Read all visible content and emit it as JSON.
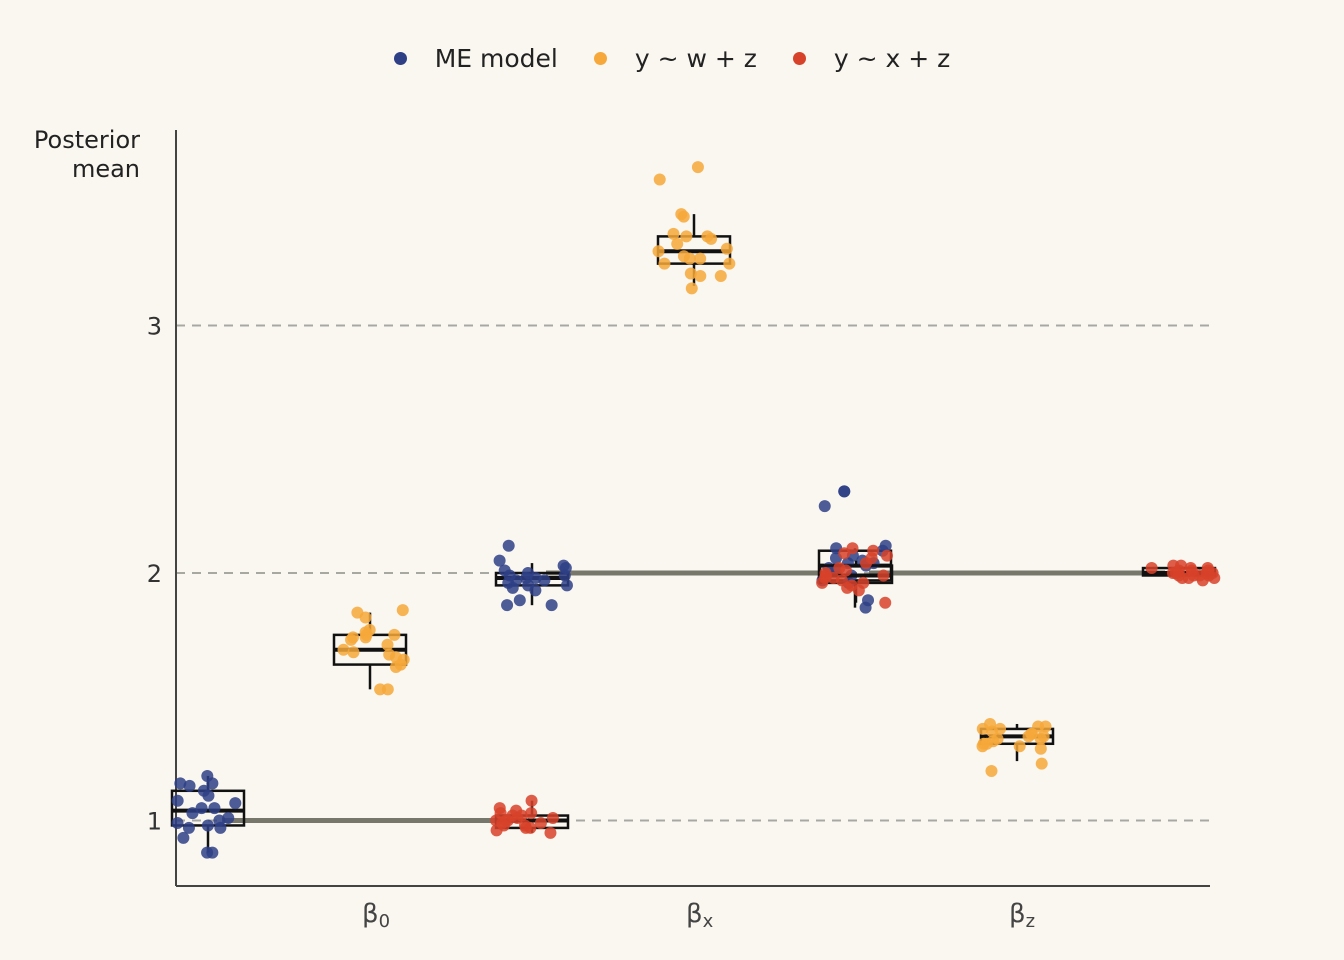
{
  "chart_data": {
    "type": "scatter",
    "subtype": "jittered points with boxplots",
    "ylabel": "Posterior\nmean",
    "xlabel": "",
    "categories": [
      "β0",
      "βx",
      "βz"
    ],
    "category_labels": [
      {
        "main": "β",
        "sub": "0"
      },
      {
        "main": "β",
        "sub": "x"
      },
      {
        "main": "β",
        "sub": "z"
      }
    ],
    "y_ticks": [
      1,
      2,
      3
    ],
    "ylim": [
      0.74,
      3.78
    ],
    "grid": "horizontal dashed at ticks",
    "legend_position": "top",
    "true_values": [
      {
        "category": "β0",
        "value": 1
      },
      {
        "category": "βx",
        "value": 2
      },
      {
        "category": "βz",
        "value": 2
      }
    ],
    "series": [
      {
        "name": "ME model",
        "color": "#2e3f86",
        "groups": [
          {
            "category": "β0",
            "offset": -0.25,
            "box": {
              "q1": 0.98,
              "median": 1.04,
              "q3": 1.12,
              "lo": 0.87,
              "hi": 1.18
            },
            "points": [
              1.18,
              1.15,
              1.15,
              1.14,
              1.12,
              1.1,
              1.08,
              1.07,
              1.05,
              1.05,
              1.03,
              1.01,
              1.0,
              0.99,
              0.98,
              0.97,
              0.97,
              0.93,
              0.87,
              0.87
            ]
          },
          {
            "category": "βx",
            "offset": -0.25,
            "box": {
              "q1": 1.95,
              "median": 1.98,
              "q3": 2.0,
              "lo": 1.87,
              "hi": 2.04
            },
            "points": [
              2.11,
              2.05,
              2.03,
              2.02,
              2.01,
              2.0,
              1.99,
              1.99,
              1.98,
              1.98,
              1.97,
              1.97,
              1.96,
              1.95,
              1.95,
              1.94,
              1.93,
              1.89,
              1.87,
              1.87
            ]
          },
          {
            "category": "βz",
            "offset": -0.25,
            "box": {
              "q1": 1.97,
              "median": 2.03,
              "q3": 2.09,
              "lo": 1.86,
              "hi": 2.1
            },
            "points": [
              2.33,
              2.33,
              2.27,
              2.11,
              2.1,
              2.09,
              2.07,
              2.06,
              2.05,
              2.04,
              2.04,
              2.03,
              2.02,
              2.01,
              1.99,
              1.98,
              1.97,
              1.96,
              1.89,
              1.86
            ]
          }
        ]
      },
      {
        "name": "y ~ w + z",
        "color": "#f6a83a",
        "groups": [
          {
            "category": "β0",
            "offset": 0,
            "box": {
              "q1": 1.63,
              "median": 1.69,
              "q3": 1.75,
              "lo": 1.53,
              "hi": 1.84
            },
            "points": [
              1.85,
              1.84,
              1.82,
              1.77,
              1.76,
              1.75,
              1.75,
              1.74,
              1.74,
              1.73,
              1.71,
              1.69,
              1.68,
              1.67,
              1.66,
              1.65,
              1.63,
              1.62,
              1.53,
              1.53
            ]
          },
          {
            "category": "βx",
            "offset": 0,
            "box": {
              "q1": 3.25,
              "median": 3.3,
              "q3": 3.36,
              "lo": 3.16,
              "hi": 3.45
            },
            "points": [
              3.64,
              3.59,
              3.45,
              3.44,
              3.37,
              3.36,
              3.36,
              3.35,
              3.33,
              3.31,
              3.3,
              3.28,
              3.27,
              3.27,
              3.25,
              3.25,
              3.21,
              3.2,
              3.2,
              3.15
            ]
          },
          {
            "category": "βz",
            "offset": 0,
            "box": {
              "q1": 1.31,
              "median": 1.34,
              "q3": 1.37,
              "lo": 1.24,
              "hi": 1.39
            },
            "points": [
              1.39,
              1.38,
              1.38,
              1.37,
              1.37,
              1.36,
              1.35,
              1.35,
              1.34,
              1.34,
              1.33,
              1.33,
              1.32,
              1.31,
              1.31,
              1.3,
              1.3,
              1.29,
              1.23,
              1.2
            ]
          }
        ]
      },
      {
        "name": "y ~ x + z",
        "color": "#d7422a",
        "groups": [
          {
            "category": "β0",
            "offset": 0.25,
            "box": {
              "q1": 0.97,
              "median": 1.0,
              "q3": 1.02,
              "lo": 0.95,
              "hi": 1.08
            },
            "points": [
              1.08,
              1.05,
              1.04,
              1.03,
              1.03,
              1.02,
              1.02,
              1.01,
              1.01,
              1.0,
              1.0,
              1.0,
              0.99,
              0.99,
              0.98,
              0.98,
              0.97,
              0.97,
              0.96,
              0.95
            ]
          },
          {
            "category": "βx",
            "offset": 0.25,
            "box": {
              "q1": 1.96,
              "median": 1.99,
              "q3": 2.03,
              "lo": 1.88,
              "hi": 2.05
            },
            "points": [
              2.1,
              2.09,
              2.08,
              2.07,
              2.06,
              2.04,
              2.02,
              2.01,
              2.0,
              1.99,
              1.99,
              1.98,
              1.98,
              1.97,
              1.96,
              1.96,
              1.95,
              1.94,
              1.93,
              1.88
            ]
          },
          {
            "category": "βz",
            "offset": 0.25,
            "box": {
              "q1": 1.99,
              "median": 2.0,
              "q3": 2.02,
              "lo": 1.98,
              "hi": 2.03
            },
            "points": [
              2.03,
              2.03,
              2.02,
              2.02,
              2.02,
              2.01,
              2.01,
              2.01,
              2.0,
              2.0,
              2.0,
              2.0,
              1.99,
              1.99,
              1.99,
              1.99,
              1.98,
              1.98,
              1.98,
              1.97
            ]
          }
        ]
      }
    ]
  }
}
